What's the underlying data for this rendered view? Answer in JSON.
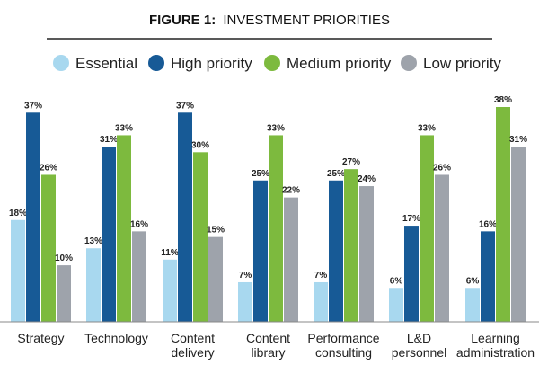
{
  "chart_data": {
    "type": "bar",
    "title_prefix": "FIGURE 1:",
    "title": "INVESTMENT PRIORITIES",
    "categories": [
      [
        "Strategy"
      ],
      [
        "Technology"
      ],
      [
        "Content",
        "delivery"
      ],
      [
        "Content",
        "library"
      ],
      [
        "Performance",
        "consulting"
      ],
      [
        "L&D",
        "personnel"
      ],
      [
        "Learning",
        "administration"
      ]
    ],
    "series": [
      {
        "name": "Essential",
        "color": "#a8d8ef",
        "values": [
          18,
          13,
          11,
          7,
          7,
          6,
          6
        ]
      },
      {
        "name": "High priority",
        "color": "#175a96",
        "values": [
          37,
          31,
          37,
          25,
          25,
          17,
          16
        ]
      },
      {
        "name": "Medium priority",
        "color": "#7dba3e",
        "values": [
          26,
          33,
          30,
          33,
          27,
          33,
          38
        ]
      },
      {
        "name": "Low priority",
        "color": "#9ea3ab",
        "values": [
          10,
          16,
          15,
          22,
          24,
          26,
          31
        ]
      }
    ],
    "value_suffix": "%",
    "ylim": [
      0,
      38
    ],
    "xlabel": "",
    "ylabel": "",
    "legend_position": "top",
    "grid": false
  }
}
